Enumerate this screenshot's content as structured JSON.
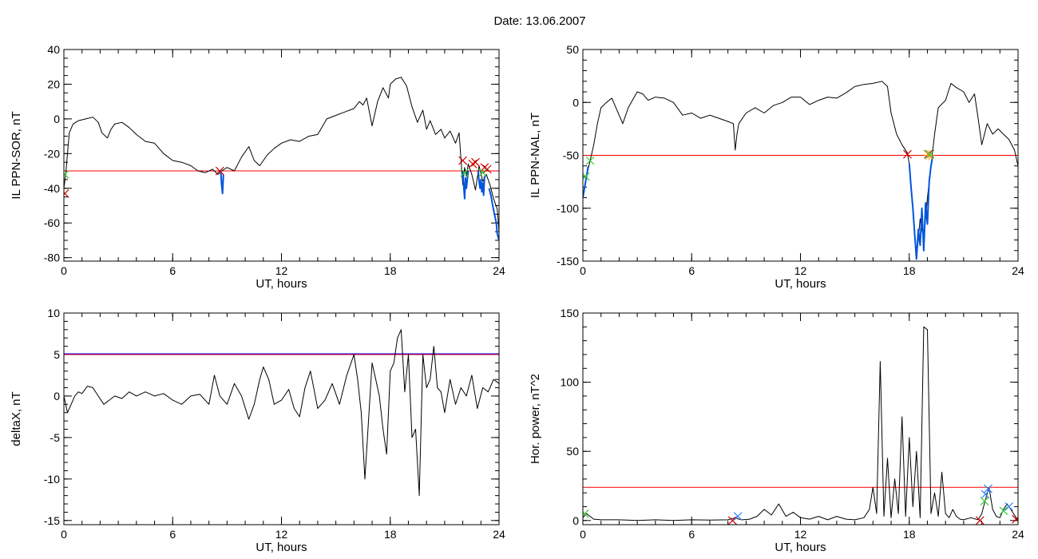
{
  "title": "Date:  13.06.2007",
  "colors": {
    "axes": "#000000",
    "data": "#000000",
    "threshold": "#ff0000",
    "event": "#0055dd",
    "threshold_blue": "#0000ff",
    "marker_red": "#cc0000",
    "marker_green": "#33cc33",
    "marker_blue": "#3388ff",
    "marker_orange": "#ff9900"
  },
  "chart_data": [
    {
      "type": "line",
      "panel": "top-left",
      "xlabel": "UT, hours",
      "ylabel": "IL PPN-SOR, nT",
      "xlim": [
        0,
        24
      ],
      "ylim": [
        -82,
        40
      ],
      "xticks": [
        0,
        6,
        12,
        18,
        24
      ],
      "yticks": [
        -80,
        -60,
        -40,
        -20,
        0,
        20,
        40
      ],
      "xminor": 1,
      "yminor": 5,
      "threshold": -30,
      "series": [
        {
          "role": "data",
          "x": [
            0,
            0.1,
            0.2,
            0.3,
            0.5,
            0.8,
            1.2,
            1.6,
            1.9,
            2.1,
            2.4,
            2.6,
            2.8,
            3.2,
            3.6,
            4,
            4.5,
            5,
            5.5,
            6,
            6.5,
            7,
            7.4,
            7.8,
            8.2,
            8.5,
            8.7,
            9,
            9.4,
            9.8,
            10.2,
            10.5,
            10.8,
            11.2,
            11.6,
            12,
            12.5,
            13,
            13.5,
            14,
            14.5,
            15,
            15.5,
            16,
            16.3,
            16.5,
            16.7,
            17,
            17.3,
            17.6,
            17.9,
            18,
            18.3,
            18.6,
            18.9,
            19.2,
            19.5,
            19.8,
            20,
            20.2,
            20.5,
            20.8,
            21,
            21.3,
            21.6,
            21.8,
            22,
            22.1,
            22.2,
            22.3,
            22.5,
            22.7,
            22.9,
            23.1,
            23.3,
            23.5,
            23.7,
            23.9,
            24
          ],
          "y": [
            -40,
            -32,
            -20,
            -8,
            -3,
            -1,
            0,
            1,
            -2,
            -8,
            -11,
            -6,
            -3,
            -2,
            -5,
            -9,
            -13,
            -14,
            -20,
            -24,
            -25,
            -27,
            -30,
            -31,
            -29,
            -32,
            -30,
            -28,
            -30,
            -22,
            -16,
            -24,
            -27,
            -21,
            -17,
            -14,
            -12,
            -13,
            -10,
            -9,
            0,
            2,
            4,
            6,
            10,
            8,
            12,
            -4,
            10,
            18,
            12,
            20,
            23,
            24,
            19,
            7,
            -2,
            5,
            -6,
            -1,
            -9,
            -6,
            -11,
            -7,
            -14,
            -8,
            -38,
            -28,
            -33,
            -26,
            -32,
            -41,
            -27,
            -36,
            -32,
            -38,
            -46,
            -52,
            -65
          ]
        },
        {
          "role": "event",
          "x": [
            8.65,
            8.7,
            8.75,
            8.8
          ],
          "y": [
            -30,
            -38,
            -43,
            -32
          ]
        },
        {
          "role": "event",
          "x": [
            22,
            22.05,
            22.1,
            22.15,
            22.2,
            22.3
          ],
          "y": [
            -30,
            -38,
            -46,
            -34,
            -40,
            -30
          ]
        },
        {
          "role": "event",
          "x": [
            22.85,
            22.9,
            22.95,
            23,
            23.05,
            23.1,
            23.15,
            23.2
          ],
          "y": [
            -30,
            -36,
            -40,
            -35,
            -42,
            -37,
            -44,
            -33
          ]
        },
        {
          "role": "event",
          "x": [
            23.45,
            23.55,
            23.65,
            23.75,
            23.85,
            23.9,
            24
          ],
          "y": [
            -40,
            -44,
            -50,
            -55,
            -60,
            -66,
            -70
          ]
        }
      ],
      "markers": [
        {
          "x": 0.05,
          "y": -32,
          "shape": "x",
          "color": "marker_green"
        },
        {
          "x": 0.05,
          "y": -43,
          "shape": "x",
          "color": "marker_red"
        },
        {
          "x": 8.6,
          "y": -30,
          "shape": "x",
          "color": "marker_red"
        },
        {
          "x": 22,
          "y": -24,
          "shape": "x",
          "color": "marker_red"
        },
        {
          "x": 22.55,
          "y": -26,
          "shape": "x",
          "color": "marker_red"
        },
        {
          "x": 22.7,
          "y": -25,
          "shape": "x",
          "color": "marker_red"
        },
        {
          "x": 23.2,
          "y": -28,
          "shape": "x",
          "color": "marker_red"
        },
        {
          "x": 23.35,
          "y": -29,
          "shape": "x",
          "color": "marker_red"
        },
        {
          "x": 22.1,
          "y": -31,
          "shape": "x",
          "color": "marker_green"
        },
        {
          "x": 23.1,
          "y": -31,
          "shape": "x",
          "color": "marker_green"
        }
      ]
    },
    {
      "type": "line",
      "panel": "top-right",
      "xlabel": "UT, hours",
      "ylabel": "IL PPN-NAL, nT",
      "xlim": [
        0,
        24
      ],
      "ylim": [
        -150,
        50
      ],
      "xticks": [
        0,
        6,
        12,
        18,
        24
      ],
      "yticks": [
        -150,
        -100,
        -50,
        0,
        50
      ],
      "xminor": 1,
      "yminor": 10,
      "threshold": -50,
      "series": [
        {
          "role": "data",
          "x": [
            0,
            0.2,
            0.4,
            0.6,
            0.8,
            1,
            1.3,
            1.6,
            1.9,
            2.2,
            2.5,
            2.8,
            3,
            3.3,
            3.6,
            4,
            4.5,
            5,
            5.5,
            6,
            6.5,
            7,
            7.5,
            8,
            8.3,
            8.4,
            8.5,
            8.6,
            9,
            9.5,
            10,
            10.5,
            11,
            11.5,
            12,
            12.5,
            13,
            13.5,
            14,
            14.5,
            15,
            15.5,
            16,
            16.5,
            16.8,
            17,
            17.3,
            17.6,
            17.9,
            18,
            18.2,
            18.4,
            18.6,
            18.8,
            19,
            19.2,
            19.4,
            19.6,
            20,
            20.3,
            20.6,
            21,
            21.3,
            21.6,
            21.8,
            22,
            22.3,
            22.6,
            22.9,
            23.2,
            23.5,
            23.8,
            24
          ],
          "y": [
            -90,
            -70,
            -55,
            -40,
            -20,
            -5,
            0,
            4,
            -8,
            -20,
            -5,
            4,
            10,
            8,
            2,
            5,
            4,
            0,
            -12,
            -10,
            -15,
            -12,
            -15,
            -18,
            -20,
            -45,
            -30,
            -20,
            -10,
            -5,
            -10,
            -3,
            0,
            5,
            5,
            -2,
            2,
            5,
            4,
            9,
            15,
            17,
            18,
            20,
            15,
            -10,
            -30,
            -40,
            -48,
            -58,
            -100,
            -148,
            -110,
            -130,
            -90,
            -60,
            -30,
            -5,
            2,
            18,
            14,
            10,
            0,
            8,
            -15,
            -40,
            -20,
            -30,
            -25,
            -30,
            -35,
            -45,
            -60
          ]
        },
        {
          "role": "event",
          "x": [
            0,
            0.15,
            0.3
          ],
          "y": [
            -90,
            -75,
            -60
          ]
        },
        {
          "role": "event",
          "x": [
            18,
            18.1,
            18.2,
            18.3,
            18.4,
            18.5,
            18.6,
            18.7,
            18.8,
            18.9,
            19,
            19.1,
            19.2,
            19.3
          ],
          "y": [
            -58,
            -80,
            -100,
            -125,
            -148,
            -120,
            -135,
            -100,
            -140,
            -95,
            -115,
            -75,
            -60,
            -50
          ]
        }
      ],
      "markers": [
        {
          "x": 0.15,
          "y": -70,
          "shape": "x",
          "color": "marker_green"
        },
        {
          "x": 0.4,
          "y": -55,
          "shape": "x",
          "color": "marker_green"
        },
        {
          "x": 17.9,
          "y": -49,
          "shape": "x",
          "color": "marker_red"
        },
        {
          "x": 19.05,
          "y": -49,
          "shape": "x",
          "color": "marker_red"
        },
        {
          "x": 19.1,
          "y": -50,
          "shape": "star",
          "color": "marker_orange"
        },
        {
          "x": 19.15,
          "y": -49,
          "shape": "x",
          "color": "marker_green"
        }
      ]
    },
    {
      "type": "line",
      "panel": "bottom-left",
      "xlabel": "UT, hours",
      "ylabel": "deltaX, nT",
      "xlim": [
        0,
        24
      ],
      "ylim": [
        -15.5,
        10
      ],
      "xticks": [
        0,
        6,
        12,
        18,
        24
      ],
      "yticks": [
        -15,
        -10,
        -5,
        0,
        5,
        10
      ],
      "xminor": 1,
      "yminor": 1,
      "threshold": 5,
      "series": [
        {
          "role": "data",
          "x": [
            0,
            0.2,
            0.4,
            0.6,
            0.8,
            1,
            1.3,
            1.6,
            1.9,
            2.2,
            2.5,
            2.8,
            3.2,
            3.6,
            4,
            4.5,
            5,
            5.5,
            6,
            6.5,
            7,
            7.5,
            8,
            8.3,
            8.6,
            9,
            9.4,
            9.8,
            10.2,
            10.5,
            10.8,
            11,
            11.3,
            11.6,
            12,
            12.4,
            12.7,
            13,
            13.3,
            13.6,
            14,
            14.4,
            14.8,
            15.2,
            15.6,
            16,
            16.2,
            16.4,
            16.6,
            16.8,
            17,
            17.2,
            17.4,
            17.6,
            17.8,
            18,
            18.2,
            18.4,
            18.6,
            18.8,
            19,
            19.2,
            19.4,
            19.6,
            19.8,
            20,
            20.2,
            20.4,
            20.6,
            20.8,
            21,
            21.3,
            21.6,
            21.9,
            22.2,
            22.5,
            22.8,
            23.1,
            23.4,
            23.7,
            24
          ],
          "y": [
            0,
            -2,
            -1,
            0,
            0.5,
            0.3,
            1.2,
            1,
            0,
            -1,
            -0.5,
            0,
            -0.3,
            0.5,
            0,
            0.5,
            0,
            0.3,
            -0.5,
            -1,
            0,
            0.2,
            -1,
            2.5,
            0,
            -1,
            1.5,
            0,
            -2.8,
            -1,
            2,
            3.5,
            2,
            -1,
            -0.5,
            0.8,
            -1.5,
            -2.5,
            1,
            3,
            -1.5,
            -0.5,
            1.5,
            -1,
            2.5,
            5,
            2,
            -2,
            -10,
            -3,
            4,
            2,
            0,
            -4,
            -7,
            3,
            4,
            7,
            8,
            0.5,
            5,
            -5,
            -4,
            -12,
            5,
            1,
            2,
            6,
            1,
            0.5,
            -2,
            2,
            -1,
            1,
            0,
            2.5,
            -1.5,
            1,
            0.5,
            2,
            1.5
          ]
        }
      ],
      "markers": []
    },
    {
      "type": "line",
      "panel": "bottom-right",
      "xlabel": "UT, hours",
      "ylabel": "Hor. power, nT^2",
      "xlim": [
        0,
        24
      ],
      "ylim": [
        -3,
        150
      ],
      "xticks": [
        0,
        6,
        12,
        18,
        24
      ],
      "yticks": [
        0,
        50,
        100,
        150
      ],
      "xminor": 1,
      "yminor": 10,
      "threshold": 24,
      "series": [
        {
          "role": "data",
          "x": [
            0,
            0.2,
            0.4,
            0.6,
            1,
            2,
            3,
            4,
            5,
            6,
            7,
            8,
            8.4,
            8.6,
            8.8,
            9.2,
            9.6,
            10,
            10.4,
            10.8,
            11.2,
            11.6,
            12,
            12.5,
            13,
            13.5,
            14,
            14.5,
            15,
            15.5,
            15.8,
            16,
            16.2,
            16.4,
            16.6,
            16.8,
            17,
            17.2,
            17.4,
            17.6,
            17.8,
            18,
            18.2,
            18.4,
            18.6,
            18.8,
            19,
            19.2,
            19.4,
            19.6,
            19.8,
            20,
            20.2,
            20.4,
            20.6,
            20.8,
            21,
            21.4,
            21.8,
            22,
            22.2,
            22.4,
            22.6,
            22.8,
            23,
            23.2,
            23.4,
            23.6,
            23.8,
            24
          ],
          "y": [
            2,
            5,
            3,
            1,
            0.5,
            0.5,
            0,
            0.5,
            0,
            0.5,
            0.3,
            0.5,
            2,
            1,
            0.5,
            1,
            3,
            8,
            4,
            12,
            3,
            6,
            2,
            1,
            3,
            0.5,
            3,
            1,
            0.5,
            2,
            8,
            24,
            5,
            115,
            3,
            45,
            2,
            30,
            5,
            75,
            3,
            60,
            10,
            50,
            2,
            140,
            138,
            5,
            20,
            3,
            35,
            5,
            2,
            8,
            3,
            1,
            0.5,
            2,
            0.5,
            5,
            15,
            24,
            8,
            3,
            2,
            8,
            12,
            8,
            4,
            0
          ]
        }
      ],
      "markers": [
        {
          "x": 0.1,
          "y": 5,
          "shape": "x",
          "color": "marker_green"
        },
        {
          "x": 8.25,
          "y": 0,
          "shape": "x",
          "color": "marker_red"
        },
        {
          "x": 8.55,
          "y": 3,
          "shape": "x",
          "color": "marker_blue"
        },
        {
          "x": 22.2,
          "y": 19,
          "shape": "x",
          "color": "marker_blue"
        },
        {
          "x": 22.35,
          "y": 23,
          "shape": "x",
          "color": "marker_blue"
        },
        {
          "x": 22.15,
          "y": 14,
          "shape": "x",
          "color": "marker_green"
        },
        {
          "x": 23.5,
          "y": 10,
          "shape": "x",
          "color": "marker_blue"
        },
        {
          "x": 23.2,
          "y": 7,
          "shape": "x",
          "color": "marker_green"
        },
        {
          "x": 23.9,
          "y": 1,
          "shape": "x",
          "color": "marker_red"
        },
        {
          "x": 21.9,
          "y": 0,
          "shape": "x",
          "color": "marker_red"
        }
      ]
    }
  ]
}
